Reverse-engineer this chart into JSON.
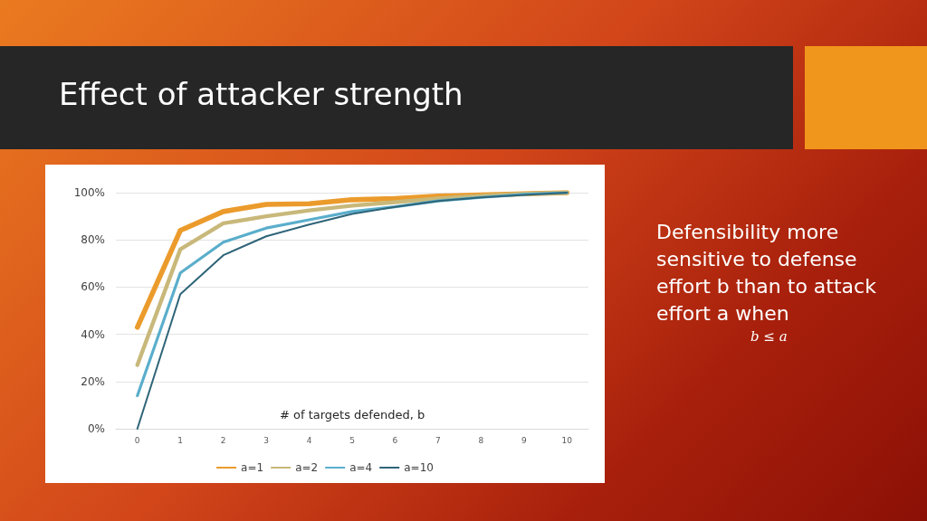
{
  "chart_data": {
    "type": "line",
    "title": "Effect of attacker strength",
    "xlabel": "# of targets defended, b",
    "categories": [
      "0",
      "1",
      "2",
      "3",
      "4",
      "5",
      "6",
      "7",
      "8",
      "9",
      "10"
    ],
    "series": [
      {
        "name": "a=1",
        "color": "#eb9b2c",
        "values": [
          43,
          84,
          92,
          95,
          95.3,
          97,
          97.5,
          98.5,
          99,
          99.5,
          100
        ]
      },
      {
        "name": "a=2",
        "color": "#c8b87a",
        "values": [
          27,
          76,
          87,
          90,
          92.5,
          94.5,
          96,
          97.5,
          98.7,
          99.5,
          100
        ]
      },
      {
        "name": "a=4",
        "color": "#5aaecb",
        "values": [
          14,
          66,
          79,
          85,
          88.5,
          92,
          94,
          96.5,
          98,
          99.3,
          100
        ]
      },
      {
        "name": "a=10",
        "color": "#2e6478",
        "values": [
          0,
          57,
          73.5,
          81.5,
          86.5,
          91,
          94,
          96.5,
          98,
          99,
          100
        ]
      }
    ],
    "ylim": [
      0,
      100
    ],
    "yticks": [
      {
        "value": 0,
        "label": "0%"
      },
      {
        "value": 20,
        "label": "20%"
      },
      {
        "value": 40,
        "label": "40%"
      },
      {
        "value": 60,
        "label": "60%"
      },
      {
        "value": 80,
        "label": "80%"
      },
      {
        "value": 100,
        "label": "100%"
      }
    ],
    "grid": "y",
    "legend": "bottom",
    "marker": "none",
    "line_style": "solid",
    "annotations": [
      "Defensibility more sensitive to defense effort b than to attack effort a when",
      "b ≤ a"
    ]
  }
}
